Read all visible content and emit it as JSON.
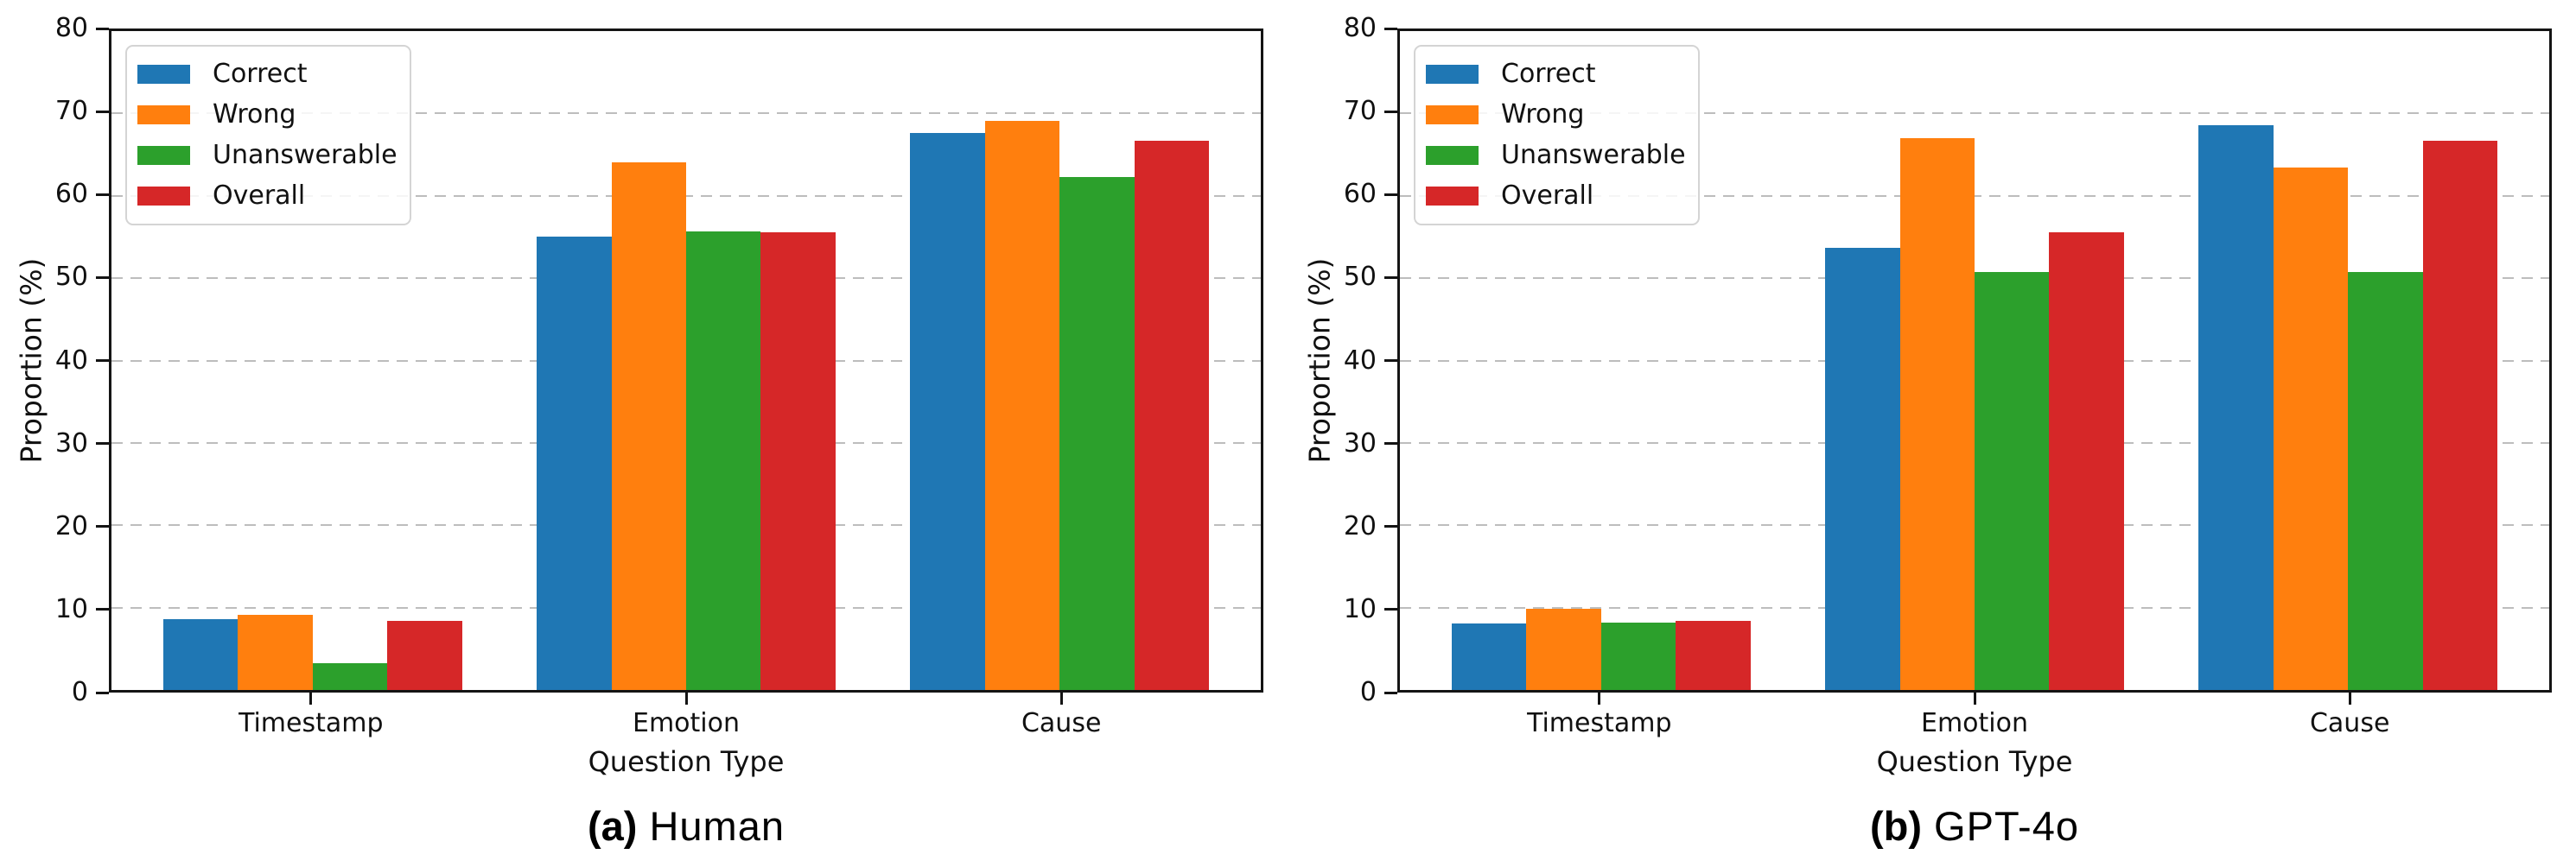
{
  "figure": {
    "background": "#ffffff"
  },
  "chart_data": [
    {
      "type": "bar",
      "caption_tag": "(a)",
      "caption_label": "Human",
      "xlabel": "Question Type",
      "ylabel": "Proportion (%)",
      "ylim": [
        0,
        80
      ],
      "yticks": [
        0,
        10,
        20,
        30,
        40,
        50,
        60,
        70,
        80
      ],
      "grid": "horizontal-dashed",
      "gridline_color": "#bdbdbd",
      "legend_position": "upper-left",
      "categories": [
        "Timestamp",
        "Emotion",
        "Cause"
      ],
      "series": [
        {
          "name": "Correct",
          "color": "#1f77b4",
          "values": [
            8.6,
            55.0,
            67.6
          ]
        },
        {
          "name": "Wrong",
          "color": "#ff7f0e",
          "values": [
            9.1,
            64.1,
            69.1
          ]
        },
        {
          "name": "Unanswerable",
          "color": "#2ca02c",
          "values": [
            3.3,
            55.7,
            62.3
          ]
        },
        {
          "name": "Overall",
          "color": "#d62728",
          "values": [
            8.4,
            55.6,
            66.7
          ]
        }
      ]
    },
    {
      "type": "bar",
      "caption_tag": "(b)",
      "caption_label": "GPT-4o",
      "xlabel": "Question Type",
      "ylabel": "Proportion (%)",
      "ylim": [
        0,
        80
      ],
      "yticks": [
        0,
        10,
        20,
        30,
        40,
        50,
        60,
        70,
        80
      ],
      "grid": "horizontal-dashed",
      "gridline_color": "#bdbdbd",
      "legend_position": "upper-left",
      "categories": [
        "Timestamp",
        "Emotion",
        "Cause"
      ],
      "series": [
        {
          "name": "Correct",
          "color": "#1f77b4",
          "values": [
            8.1,
            53.7,
            68.6
          ]
        },
        {
          "name": "Wrong",
          "color": "#ff7f0e",
          "values": [
            9.9,
            67.0,
            63.4
          ]
        },
        {
          "name": "Unanswerable",
          "color": "#2ca02c",
          "values": [
            8.2,
            50.7,
            50.7
          ]
        },
        {
          "name": "Overall",
          "color": "#d62728",
          "values": [
            8.4,
            55.6,
            66.7
          ]
        }
      ]
    }
  ]
}
